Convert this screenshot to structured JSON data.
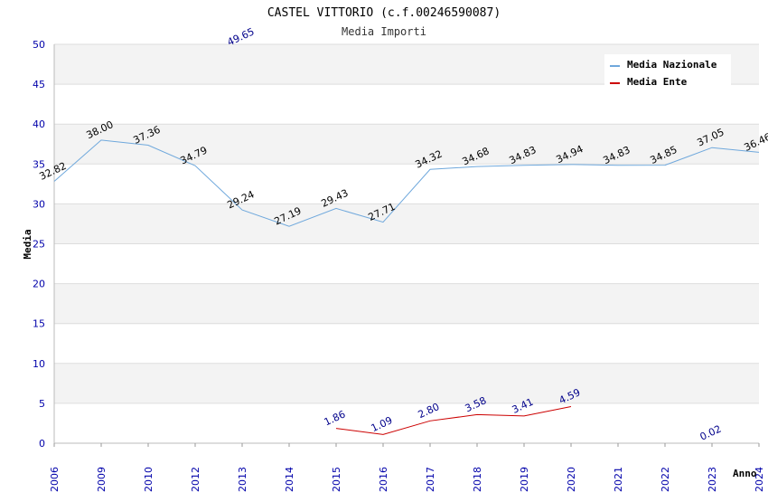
{
  "chart_data": {
    "type": "line",
    "title": "CASTEL VITTORIO (c.f.00246590087)",
    "subtitle": "Media Importi",
    "xlabel": "Anno",
    "ylabel": "Media",
    "ylim": [
      0,
      50
    ],
    "yticks": [
      "0",
      "5",
      "10",
      "15",
      "20",
      "25",
      "30",
      "35",
      "40",
      "45",
      "50"
    ],
    "categories": [
      "2006",
      "2009",
      "2010",
      "2012",
      "2013",
      "2014",
      "2015",
      "2016",
      "2017",
      "2018",
      "2019",
      "2020",
      "2021",
      "2022",
      "2023",
      "2024"
    ],
    "grid": true,
    "legend_position": "top-right",
    "series": [
      {
        "name": "Media Nazionale",
        "color": "#6fa8dc",
        "values": [
          32.82,
          38.0,
          37.36,
          34.79,
          29.24,
          27.19,
          29.43,
          27.71,
          34.32,
          34.68,
          34.83,
          34.94,
          34.83,
          34.85,
          37.05,
          36.46
        ],
        "labels": [
          "32.82",
          "38.00",
          "37.36",
          "34.79",
          "29.24",
          "27.19",
          "29.43",
          "27.71",
          "34.32",
          "34.68",
          "34.83",
          "34.94",
          "34.83",
          "34.85",
          "37.05",
          "36.46"
        ]
      },
      {
        "name": "Media Ente",
        "color": "#cc0000",
        "values": [
          null,
          null,
          null,
          null,
          49.65,
          null,
          1.86,
          1.09,
          2.8,
          3.58,
          3.41,
          4.59,
          null,
          null,
          0.02,
          null
        ],
        "labels": [
          "",
          "",
          "",
          "",
          "49.65",
          "",
          "1.86",
          "1.09",
          "2.80",
          "3.58",
          "3.41",
          "4.59",
          "",
          "",
          "0.02",
          ""
        ]
      }
    ]
  }
}
